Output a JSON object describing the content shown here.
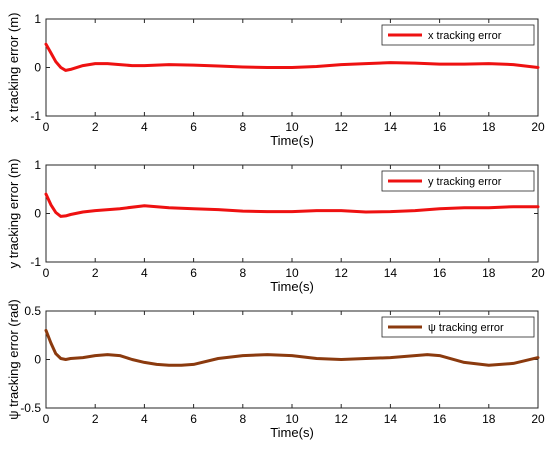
{
  "chart_data": [
    {
      "type": "line",
      "xlabel": "Time(s)",
      "ylabel": "x tracking error (m)",
      "xlim": [
        0,
        20
      ],
      "ylim": [
        -1,
        1
      ],
      "xticks": [
        "0",
        "2",
        "4",
        "6",
        "8",
        "10",
        "12",
        "14",
        "16",
        "18",
        "20"
      ],
      "yticks": [
        "-1",
        "0",
        "1"
      ],
      "grid": false,
      "legend_position": "top-right",
      "series": [
        {
          "name": "x tracking error",
          "color": "#ee1111",
          "x": [
            0,
            0.2,
            0.4,
            0.6,
            0.8,
            1.0,
            1.5,
            2.0,
            2.5,
            3,
            3.5,
            4,
            5,
            6,
            7,
            8,
            9,
            10,
            11,
            12,
            13,
            14,
            15,
            16,
            17,
            18,
            19,
            20
          ],
          "y": [
            0.48,
            0.3,
            0.12,
            0.0,
            -0.06,
            -0.04,
            0.04,
            0.08,
            0.08,
            0.06,
            0.04,
            0.04,
            0.06,
            0.05,
            0.03,
            0.01,
            0.0,
            0.0,
            0.02,
            0.06,
            0.08,
            0.1,
            0.09,
            0.07,
            0.07,
            0.08,
            0.06,
            0.0
          ]
        }
      ]
    },
    {
      "type": "line",
      "xlabel": "Time(s)",
      "ylabel": "y tracking error (m)",
      "xlim": [
        0,
        20
      ],
      "ylim": [
        -1,
        1
      ],
      "xticks": [
        "0",
        "2",
        "4",
        "6",
        "8",
        "10",
        "12",
        "14",
        "16",
        "18",
        "20"
      ],
      "yticks": [
        "-1",
        "0",
        "1"
      ],
      "grid": false,
      "legend_position": "top-right",
      "series": [
        {
          "name": "y tracking error",
          "color": "#ee1111",
          "x": [
            0,
            0.2,
            0.4,
            0.6,
            0.8,
            1.0,
            1.5,
            2.0,
            3,
            4,
            5,
            6,
            7,
            8,
            9,
            10,
            11,
            12,
            13,
            14,
            15,
            16,
            17,
            18,
            19,
            20
          ],
          "y": [
            0.4,
            0.18,
            0.02,
            -0.06,
            -0.05,
            -0.02,
            0.03,
            0.06,
            0.1,
            0.16,
            0.12,
            0.1,
            0.08,
            0.05,
            0.04,
            0.04,
            0.06,
            0.06,
            0.03,
            0.04,
            0.06,
            0.1,
            0.12,
            0.12,
            0.14,
            0.14
          ]
        }
      ]
    },
    {
      "type": "line",
      "xlabel": "Time(s)",
      "ylabel": "ψ tracking error (rad)",
      "xlim": [
        0,
        20
      ],
      "ylim": [
        -0.5,
        0.5
      ],
      "xticks": [
        "0",
        "2",
        "4",
        "6",
        "8",
        "10",
        "12",
        "14",
        "16",
        "18",
        "20"
      ],
      "yticks": [
        "-0.5",
        "0",
        "0.5"
      ],
      "grid": false,
      "legend_position": "top-right",
      "series": [
        {
          "name": "ψ tracking error",
          "color": "#8b3a0e",
          "x": [
            0,
            0.2,
            0.4,
            0.6,
            0.8,
            1.0,
            1.5,
            2.0,
            2.5,
            3,
            3.5,
            4,
            4.5,
            5,
            5.5,
            6,
            7,
            8,
            9,
            10,
            11,
            12,
            13,
            14,
            15,
            15.5,
            16,
            17,
            18,
            19,
            20
          ],
          "y": [
            0.3,
            0.17,
            0.06,
            0.01,
            0.0,
            0.01,
            0.02,
            0.04,
            0.05,
            0.04,
            0.0,
            -0.03,
            -0.05,
            -0.06,
            -0.06,
            -0.05,
            0.01,
            0.04,
            0.05,
            0.04,
            0.01,
            0.0,
            0.01,
            0.02,
            0.04,
            0.05,
            0.04,
            -0.03,
            -0.06,
            -0.04,
            0.02
          ]
        }
      ]
    }
  ]
}
